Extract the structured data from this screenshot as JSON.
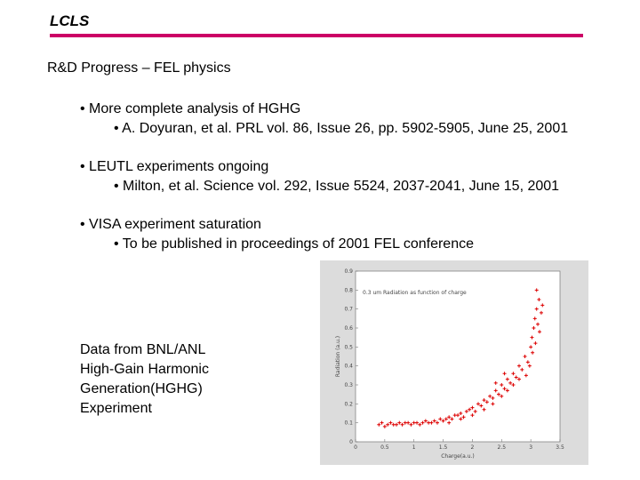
{
  "header": {
    "logo": "LCLS",
    "rule_color": "#cc0066"
  },
  "slide": {
    "heading": "R&D Progress – FEL physics",
    "bullets": [
      {
        "main": "• More complete analysis of HGHG",
        "sub": "• A. Doyuran, et al. PRL vol. 86, Issue 26, pp. 5902-5905, June 25, 2001"
      },
      {
        "main": "• LEUTL experiments ongoing",
        "sub": "• Milton, et al. Science vol. 292, Issue 5524, 2037-2041, June 15, 2001"
      },
      {
        "main": "• VISA experiment saturation",
        "sub": "• To be published in proceedings of 2001 FEL conference"
      }
    ],
    "caption_lines": [
      "Data from BNL/ANL",
      "High-Gain Harmonic",
      "Generation(HGHG)",
      "Experiment"
    ]
  },
  "chart_data": {
    "type": "scatter",
    "title": "0.3 um Radiation as function of charge",
    "xlabel": "Charge(a.u.)",
    "ylabel": "Radiation (a.u.)",
    "xlim": [
      0,
      3.5
    ],
    "ylim": [
      0,
      0.9
    ],
    "xticks": [
      "0",
      "0.5",
      "1",
      "1.5",
      "2",
      "2.5",
      "3",
      "3.5"
    ],
    "yticks": [
      "0",
      "0.1",
      "0.2",
      "0.3",
      "0.4",
      "0.5",
      "0.6",
      "0.7",
      "0.8",
      "0.9"
    ],
    "marker_color": "#dd0000",
    "points": [
      [
        0.4,
        0.09
      ],
      [
        0.45,
        0.1
      ],
      [
        0.5,
        0.08
      ],
      [
        0.55,
        0.09
      ],
      [
        0.6,
        0.1
      ],
      [
        0.65,
        0.09
      ],
      [
        0.7,
        0.09
      ],
      [
        0.75,
        0.1
      ],
      [
        0.8,
        0.09
      ],
      [
        0.85,
        0.1
      ],
      [
        0.9,
        0.1
      ],
      [
        0.95,
        0.09
      ],
      [
        1.0,
        0.1
      ],
      [
        1.05,
        0.1
      ],
      [
        1.1,
        0.09
      ],
      [
        1.15,
        0.1
      ],
      [
        1.2,
        0.11
      ],
      [
        1.25,
        0.1
      ],
      [
        1.3,
        0.1
      ],
      [
        1.35,
        0.11
      ],
      [
        1.4,
        0.1
      ],
      [
        1.45,
        0.12
      ],
      [
        1.5,
        0.11
      ],
      [
        1.55,
        0.12
      ],
      [
        1.6,
        0.13
      ],
      [
        1.65,
        0.12
      ],
      [
        1.7,
        0.14
      ],
      [
        1.75,
        0.14
      ],
      [
        1.8,
        0.15
      ],
      [
        1.85,
        0.13
      ],
      [
        1.9,
        0.16
      ],
      [
        1.95,
        0.17
      ],
      [
        2.0,
        0.18
      ],
      [
        2.05,
        0.16
      ],
      [
        2.1,
        0.2
      ],
      [
        2.15,
        0.19
      ],
      [
        2.2,
        0.22
      ],
      [
        2.25,
        0.21
      ],
      [
        2.3,
        0.24
      ],
      [
        2.35,
        0.23
      ],
      [
        2.4,
        0.27
      ],
      [
        2.45,
        0.25
      ],
      [
        2.5,
        0.3
      ],
      [
        2.55,
        0.28
      ],
      [
        2.6,
        0.33
      ],
      [
        2.65,
        0.31
      ],
      [
        2.7,
        0.36
      ],
      [
        2.75,
        0.34
      ],
      [
        2.8,
        0.4
      ],
      [
        2.85,
        0.38
      ],
      [
        2.9,
        0.45
      ],
      [
        2.95,
        0.42
      ],
      [
        3.0,
        0.5
      ],
      [
        3.02,
        0.55
      ],
      [
        3.05,
        0.6
      ],
      [
        3.07,
        0.65
      ],
      [
        3.1,
        0.7
      ],
      [
        3.12,
        0.62
      ],
      [
        3.15,
        0.58
      ],
      [
        3.08,
        0.52
      ],
      [
        3.03,
        0.47
      ],
      [
        2.98,
        0.4
      ],
      [
        2.92,
        0.35
      ],
      [
        3.18,
        0.68
      ],
      [
        3.2,
        0.72
      ],
      [
        3.14,
        0.75
      ],
      [
        3.1,
        0.8
      ],
      [
        2.2,
        0.17
      ],
      [
        2.35,
        0.2
      ],
      [
        2.5,
        0.24
      ],
      [
        2.6,
        0.27
      ],
      [
        2.7,
        0.3
      ],
      [
        2.8,
        0.33
      ],
      [
        1.6,
        0.1
      ],
      [
        1.8,
        0.12
      ],
      [
        2.0,
        0.14
      ],
      [
        2.4,
        0.31
      ],
      [
        2.55,
        0.36
      ]
    ]
  }
}
